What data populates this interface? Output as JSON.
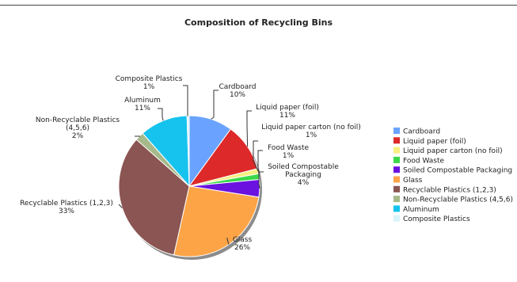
{
  "chart_data": {
    "type": "pie",
    "title": "Composition of Recycling Bins",
    "slices": [
      {
        "label": "Cardboard",
        "display": [
          "Cardboard"
        ],
        "percent_text": "10%",
        "value": 10,
        "color": "#6aa3ff"
      },
      {
        "label": "Liquid paper (foil)",
        "display": [
          "Liquid paper (foil)"
        ],
        "percent_text": "11%",
        "value": 11,
        "color": "#dd2929"
      },
      {
        "label": "Liquid paper carton (no foil)",
        "display": [
          "Liquid paper carton (no foil)"
        ],
        "percent_text": "1%",
        "value": 1.2,
        "color": "#f7ef82"
      },
      {
        "label": "Food Waste",
        "display": [
          "Food Waste"
        ],
        "percent_text": "1%",
        "value": 1.3,
        "color": "#3ad84a"
      },
      {
        "label": "Soiled Compostable Packaging",
        "display": [
          "Soiled Compostable",
          "Packaging"
        ],
        "percent_text": "4%",
        "value": 4,
        "color": "#6b12e0"
      },
      {
        "label": "Glass",
        "display": [
          "Glass"
        ],
        "percent_text": "26%",
        "value": 26,
        "color": "#fda447"
      },
      {
        "label": "Recyclable Plastics (1,2,3)",
        "display": [
          "Recyclable Plastics (1,2,3)"
        ],
        "percent_text": "33%",
        "value": 33,
        "color": "#8a5552"
      },
      {
        "label": "Non-Recyclable Plastics (4,5,6)",
        "display": [
          "Non-Recyclable Plastics",
          "(4,5,6)"
        ],
        "percent_text": "2%",
        "value": 2,
        "color": "#a5b98a"
      },
      {
        "label": "Aluminum",
        "display": [
          "Aluminum"
        ],
        "percent_text": "11%",
        "value": 11,
        "color": "#16c3ee"
      },
      {
        "label": "Composite Plastics",
        "display": [
          "Composite Plastics"
        ],
        "percent_text": "1%",
        "value": 0.5,
        "color": "#d8f4fb"
      }
    ],
    "legend_position": "right"
  }
}
